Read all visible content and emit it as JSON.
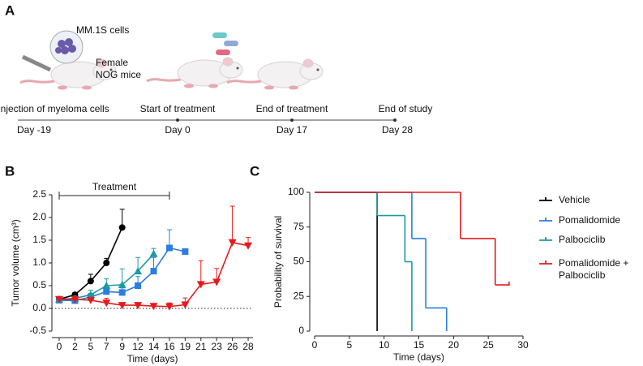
{
  "panel_a": {
    "label": "A",
    "cells_label": "MM.1S cells",
    "mouse_label": [
      "Female",
      "NOG mice"
    ],
    "events": [
      {
        "label": "Injection of myeloma cells",
        "day": "Day -19"
      },
      {
        "label": "Start of treatment",
        "day": "Day 0"
      },
      {
        "label": "End of treatment",
        "day": "Day 17"
      },
      {
        "label": "End of study",
        "day": "Day 28"
      }
    ]
  },
  "chart_data": [
    {
      "type": "line",
      "panel_label": "B",
      "xlabel": "Time (days)",
      "ylabel": "Tumor volume (cm³)",
      "annotation": {
        "label": "Treatment",
        "span": [
          0,
          16
        ]
      },
      "categories": [
        0,
        2,
        5,
        7,
        9,
        12,
        14,
        16,
        19,
        21,
        23,
        26,
        28
      ],
      "ylim": [
        -0.5,
        2.5
      ],
      "yticks": [
        -0.5,
        {
          "value": 0,
          "label": "0.0"
        },
        0.5,
        {
          "value": 1,
          "label": "1.0"
        },
        1.5,
        {
          "value": 2,
          "label": "2.0"
        },
        2.5
      ],
      "zero_line": true,
      "series": [
        {
          "color": "#000000",
          "marker": "circle",
          "values": [
            0.2,
            0.3,
            0.6,
            1.0,
            1.78,
            null,
            null,
            null,
            null,
            null,
            null,
            null,
            null
          ],
          "errors": [
            0.03,
            0.05,
            0.15,
            0.1,
            0.4,
            null,
            null,
            null,
            null,
            null,
            null,
            null,
            null
          ]
        },
        {
          "color": "#2a7de1",
          "marker": "square",
          "values": [
            0.18,
            0.17,
            0.25,
            0.37,
            0.35,
            0.5,
            0.82,
            1.33,
            1.25,
            null,
            null,
            null,
            null
          ],
          "errors": [
            0.02,
            0.05,
            0.08,
            0.12,
            0.1,
            0.2,
            0.3,
            0.4,
            0,
            null,
            null,
            null,
            null
          ]
        },
        {
          "color": "#1b9aa6",
          "marker": "triangle",
          "values": [
            0.2,
            0.22,
            0.3,
            0.5,
            0.52,
            0.82,
            1.2,
            null,
            null,
            null,
            null,
            null,
            null
          ],
          "errors": [
            0.02,
            0.05,
            0.1,
            0.15,
            0.35,
            0.3,
            0.12,
            null,
            null,
            null,
            null,
            null,
            null
          ]
        },
        {
          "color": "#e41a1c",
          "marker": "triangle-down",
          "values": [
            0.2,
            0.2,
            0.18,
            0.12,
            0.07,
            0.07,
            0.05,
            0.04,
            0.08,
            0.53,
            0.58,
            1.45,
            1.38
          ],
          "errors": [
            0.02,
            0.05,
            0.05,
            0.1,
            0.05,
            0.05,
            0.05,
            0.08,
            0.15,
            0.52,
            0.3,
            0.8,
            0.18
          ]
        }
      ]
    },
    {
      "type": "step",
      "panel_label": "C",
      "xlabel": "Time (days)",
      "ylabel": "Probability of survival",
      "xlim": [
        0,
        30
      ],
      "xticks": [
        0,
        5,
        10,
        15,
        20,
        25,
        30
      ],
      "ylim": [
        0,
        100
      ],
      "yticks": [
        0,
        25,
        50,
        75,
        100
      ],
      "legend": "right",
      "series": [
        {
          "name": "Vehicle",
          "color": "#000000",
          "x": [
            0,
            9
          ],
          "values": [
            100,
            0
          ]
        },
        {
          "name": "Pomalidomide",
          "color": "#2a7de1",
          "x": [
            0,
            14,
            16,
            19
          ],
          "values": [
            100,
            66.7,
            16.7,
            0
          ]
        },
        {
          "name": "Palbociclib",
          "color": "#1b9aa6",
          "x": [
            0,
            9,
            13,
            14
          ],
          "values": [
            100,
            83.3,
            50,
            0
          ]
        },
        {
          "name": "Pomalidomide + Palbociclib",
          "color": "#e41a1c",
          "x": [
            0,
            21,
            26,
            28
          ],
          "values": [
            100,
            66.7,
            33.3,
            33.3
          ]
        }
      ]
    }
  ]
}
